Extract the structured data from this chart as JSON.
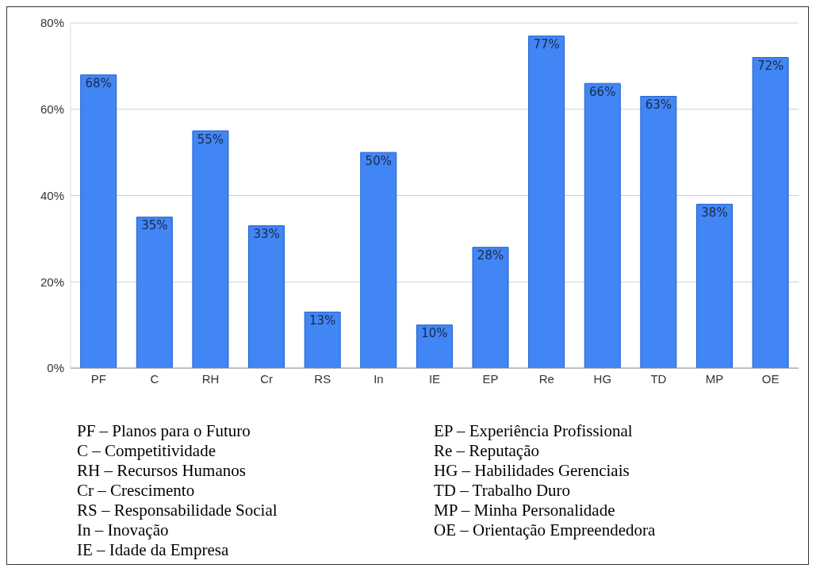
{
  "chart_data": {
    "type": "bar",
    "categories": [
      "PF",
      "C",
      "RH",
      "Cr",
      "RS",
      "In",
      "IE",
      "EP",
      "Re",
      "HG",
      "TD",
      "MP",
      "OE"
    ],
    "values": [
      68,
      35,
      55,
      33,
      13,
      50,
      10,
      28,
      77,
      66,
      63,
      38,
      72
    ],
    "value_labels": [
      "68%",
      "35%",
      "55%",
      "33%",
      "13%",
      "50%",
      "10%",
      "28%",
      "77%",
      "66%",
      "63%",
      "38%",
      "72%"
    ],
    "color": "#4285f4",
    "ylim": [
      0,
      80
    ],
    "yticks": [
      {
        "value": 0,
        "label": "0%"
      },
      {
        "value": 20,
        "label": "20%"
      },
      {
        "value": 40,
        "label": "40%"
      },
      {
        "value": 60,
        "label": "60%"
      },
      {
        "value": 80,
        "label": "80%"
      }
    ],
    "grid": "y",
    "annotations": [
      "PF – Planos para o Futuro",
      "C – Competitividade",
      "RH – Recursos Humanos",
      "Cr – Crescimento",
      "RS – Responsabilidade Social",
      "In – Inovação",
      "IE – Idade da Empresa",
      "EP – Experiência Profissional",
      "Re – Reputação",
      "HG – Habilidades Gerenciais",
      "TD – Trabalho Duro",
      "MP – Minha Personalidade",
      "OE – Orientação Empreendedora"
    ]
  }
}
